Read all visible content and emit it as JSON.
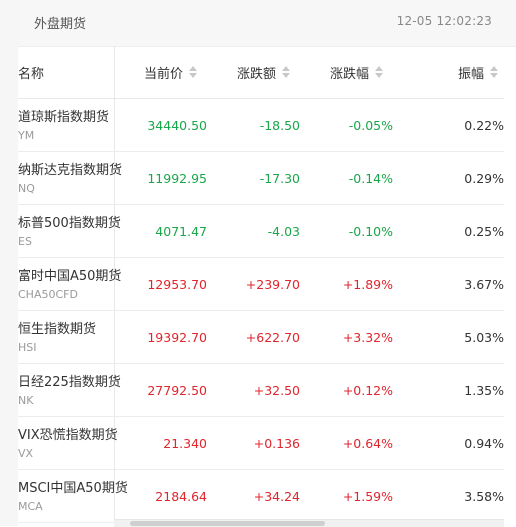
{
  "header": {
    "title": "外盘期货",
    "time": "12-05 12:02:23"
  },
  "columns": {
    "name": "名称",
    "price": "当前价",
    "change": "涨跌额",
    "change_pct": "涨跌幅",
    "amplitude": "振幅"
  },
  "rows": [
    {
      "name": "道琼斯指数期货",
      "code": "YM",
      "price": "34440.50",
      "change": "-18.50",
      "change_pct": "-0.05%",
      "amplitude": "0.22%",
      "direction": "down"
    },
    {
      "name": "纳斯达克指数期货",
      "code": "NQ",
      "price": "11992.95",
      "change": "-17.30",
      "change_pct": "-0.14%",
      "amplitude": "0.29%",
      "direction": "down"
    },
    {
      "name": "标普500指数期货",
      "code": "ES",
      "price": "4071.47",
      "change": "-4.03",
      "change_pct": "-0.10%",
      "amplitude": "0.25%",
      "direction": "down"
    },
    {
      "name": "富时中国A50期货",
      "code": "CHA50CFD",
      "price": "12953.70",
      "change": "+239.70",
      "change_pct": "+1.89%",
      "amplitude": "3.67%",
      "direction": "up"
    },
    {
      "name": "恒生指数期货",
      "code": "HSI",
      "price": "19392.70",
      "change": "+622.70",
      "change_pct": "+3.32%",
      "amplitude": "5.03%",
      "direction": "up"
    },
    {
      "name": "日经225指数期货",
      "code": "NK",
      "price": "27792.50",
      "change": "+32.50",
      "change_pct": "+0.12%",
      "amplitude": "1.35%",
      "direction": "up"
    },
    {
      "name": "VIX恐慌指数期货",
      "code": "VX",
      "price": "21.340",
      "change": "+0.136",
      "change_pct": "+0.64%",
      "amplitude": "0.94%",
      "direction": "up"
    },
    {
      "name": "MSCI中国A50期货",
      "code": "MCA",
      "price": "2184.64",
      "change": "+34.24",
      "change_pct": "+1.59%",
      "amplitude": "3.58%",
      "direction": "up"
    }
  ],
  "colors": {
    "up": "#e0252c",
    "down": "#1aa64a"
  },
  "scrollbar": {
    "position_fraction": 0.04,
    "visible_fraction": 0.5
  }
}
